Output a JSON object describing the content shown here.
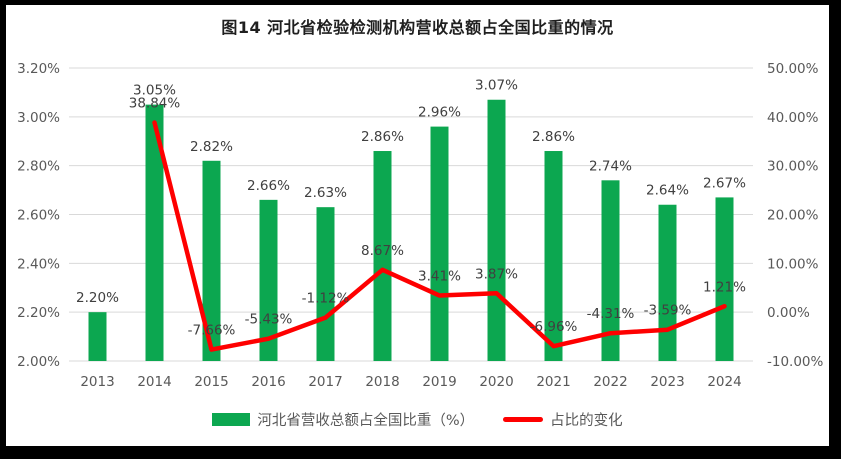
{
  "chart_data": {
    "type": "combo-bar-line",
    "title": "图14 河北省检验检测机构营收总额占全国比重的情况",
    "xlabel": "",
    "ylabel_left": "",
    "ylabel_right": "",
    "grid": "horizontal",
    "legend_position": "bottom",
    "categories": [
      "2013",
      "2014",
      "2015",
      "2016",
      "2017",
      "2018",
      "2019",
      "2020",
      "2021",
      "2022",
      "2023",
      "2024"
    ],
    "series": [
      {
        "name": "河北省营收总额占全国比重（%）",
        "type": "bar",
        "axis": "left",
        "values": [
          2.2,
          3.05,
          2.82,
          2.66,
          2.63,
          2.86,
          2.96,
          3.07,
          2.86,
          2.74,
          2.64,
          2.67
        ],
        "labels": [
          "2.20%",
          "3.05%",
          "2.82%",
          "2.66%",
          "2.63%",
          "2.86%",
          "2.96%",
          "3.07%",
          "2.86%",
          "2.74%",
          "2.64%",
          "2.67%"
        ]
      },
      {
        "name": "占比的变化",
        "type": "line",
        "axis": "right",
        "values": [
          null,
          38.84,
          -7.66,
          -5.43,
          -1.12,
          8.67,
          3.41,
          3.87,
          -6.96,
          -4.31,
          -3.59,
          1.21
        ],
        "labels": [
          null,
          "38.84%",
          "-7.66%",
          "-5.43%",
          "-1.12%",
          "8.67%",
          "3.41%",
          "3.87%",
          "-6.96%",
          "-4.31%",
          "-3.59%",
          "1.21%"
        ]
      }
    ],
    "left_axis": {
      "min": 2.0,
      "max": 3.2,
      "ticks": [
        {
          "value": 2.0,
          "label": "2.00%"
        },
        {
          "value": 2.2,
          "label": "2.20%"
        },
        {
          "value": 2.4,
          "label": "2.40%"
        },
        {
          "value": 2.6,
          "label": "2.60%"
        },
        {
          "value": 2.8,
          "label": "2.80%"
        },
        {
          "value": 3.0,
          "label": "3.00%"
        },
        {
          "value": 3.2,
          "label": "3.20%"
        }
      ]
    },
    "right_axis": {
      "min": -10,
      "max": 50,
      "ticks": [
        {
          "value": -10,
          "label": "-10.00%"
        },
        {
          "value": 0,
          "label": "0.00%"
        },
        {
          "value": 10,
          "label": "10.00%"
        },
        {
          "value": 20,
          "label": "20.00%"
        },
        {
          "value": 30,
          "label": "30.00%"
        },
        {
          "value": 40,
          "label": "40.00%"
        },
        {
          "value": 50,
          "label": "50.00%"
        }
      ]
    },
    "colors": {
      "bar": "#0CA750",
      "line": "#FE0000",
      "grid": "#D9D9D9",
      "axis_text": "#595959",
      "label_text": "#404040",
      "background": "#FFFFFF",
      "frame": "#000000"
    }
  }
}
